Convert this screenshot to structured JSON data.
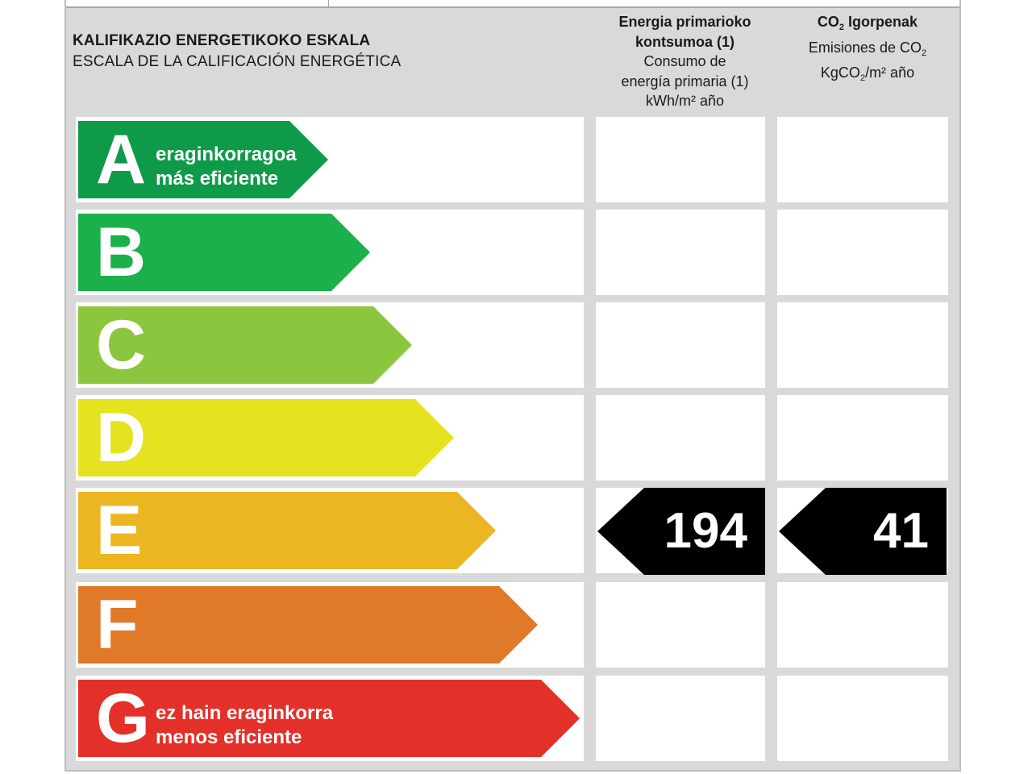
{
  "header": {
    "title_eu": "KALIFIKAZIO ENERGETIKOKO ESKALA",
    "title_es": "ESCALA DE LA CALIFICACIÓN ENERGÉTICA"
  },
  "columns": {
    "primary": {
      "line1": "Energia primarioko",
      "line2": "kontsumoa (1)",
      "line3": "Consumo de",
      "line4": "energía primaria (1)",
      "line5": "kWh/m² año"
    },
    "co2": {
      "title_co": "CO",
      "title_sub": "2",
      "title_rest": " Igorpenak",
      "line2_a": "Emisiones de CO",
      "line2_sub": "2",
      "line3_a": "KgCO",
      "line3_sub": "2",
      "line3_b": "/m² año"
    }
  },
  "classes": [
    {
      "letter": "A",
      "color": "#0f9a49",
      "text1": "eraginkorragoa",
      "text2": "más eficiente"
    },
    {
      "letter": "B",
      "color": "#1bb04a",
      "text1": "",
      "text2": ""
    },
    {
      "letter": "C",
      "color": "#8cc63f",
      "text1": "",
      "text2": ""
    },
    {
      "letter": "D",
      "color": "#e5e31f",
      "text1": "",
      "text2": ""
    },
    {
      "letter": "E",
      "color": "#ecb522",
      "text1": "",
      "text2": ""
    },
    {
      "letter": "F",
      "color": "#e07a28",
      "text1": "",
      "text2": ""
    },
    {
      "letter": "G",
      "color": "#e3312a",
      "text1": "ez hain eraginkorra",
      "text2": "menos eficiente"
    }
  ],
  "rating": {
    "class": "E",
    "primary_energy": "194",
    "co2_emissions": "41"
  }
}
